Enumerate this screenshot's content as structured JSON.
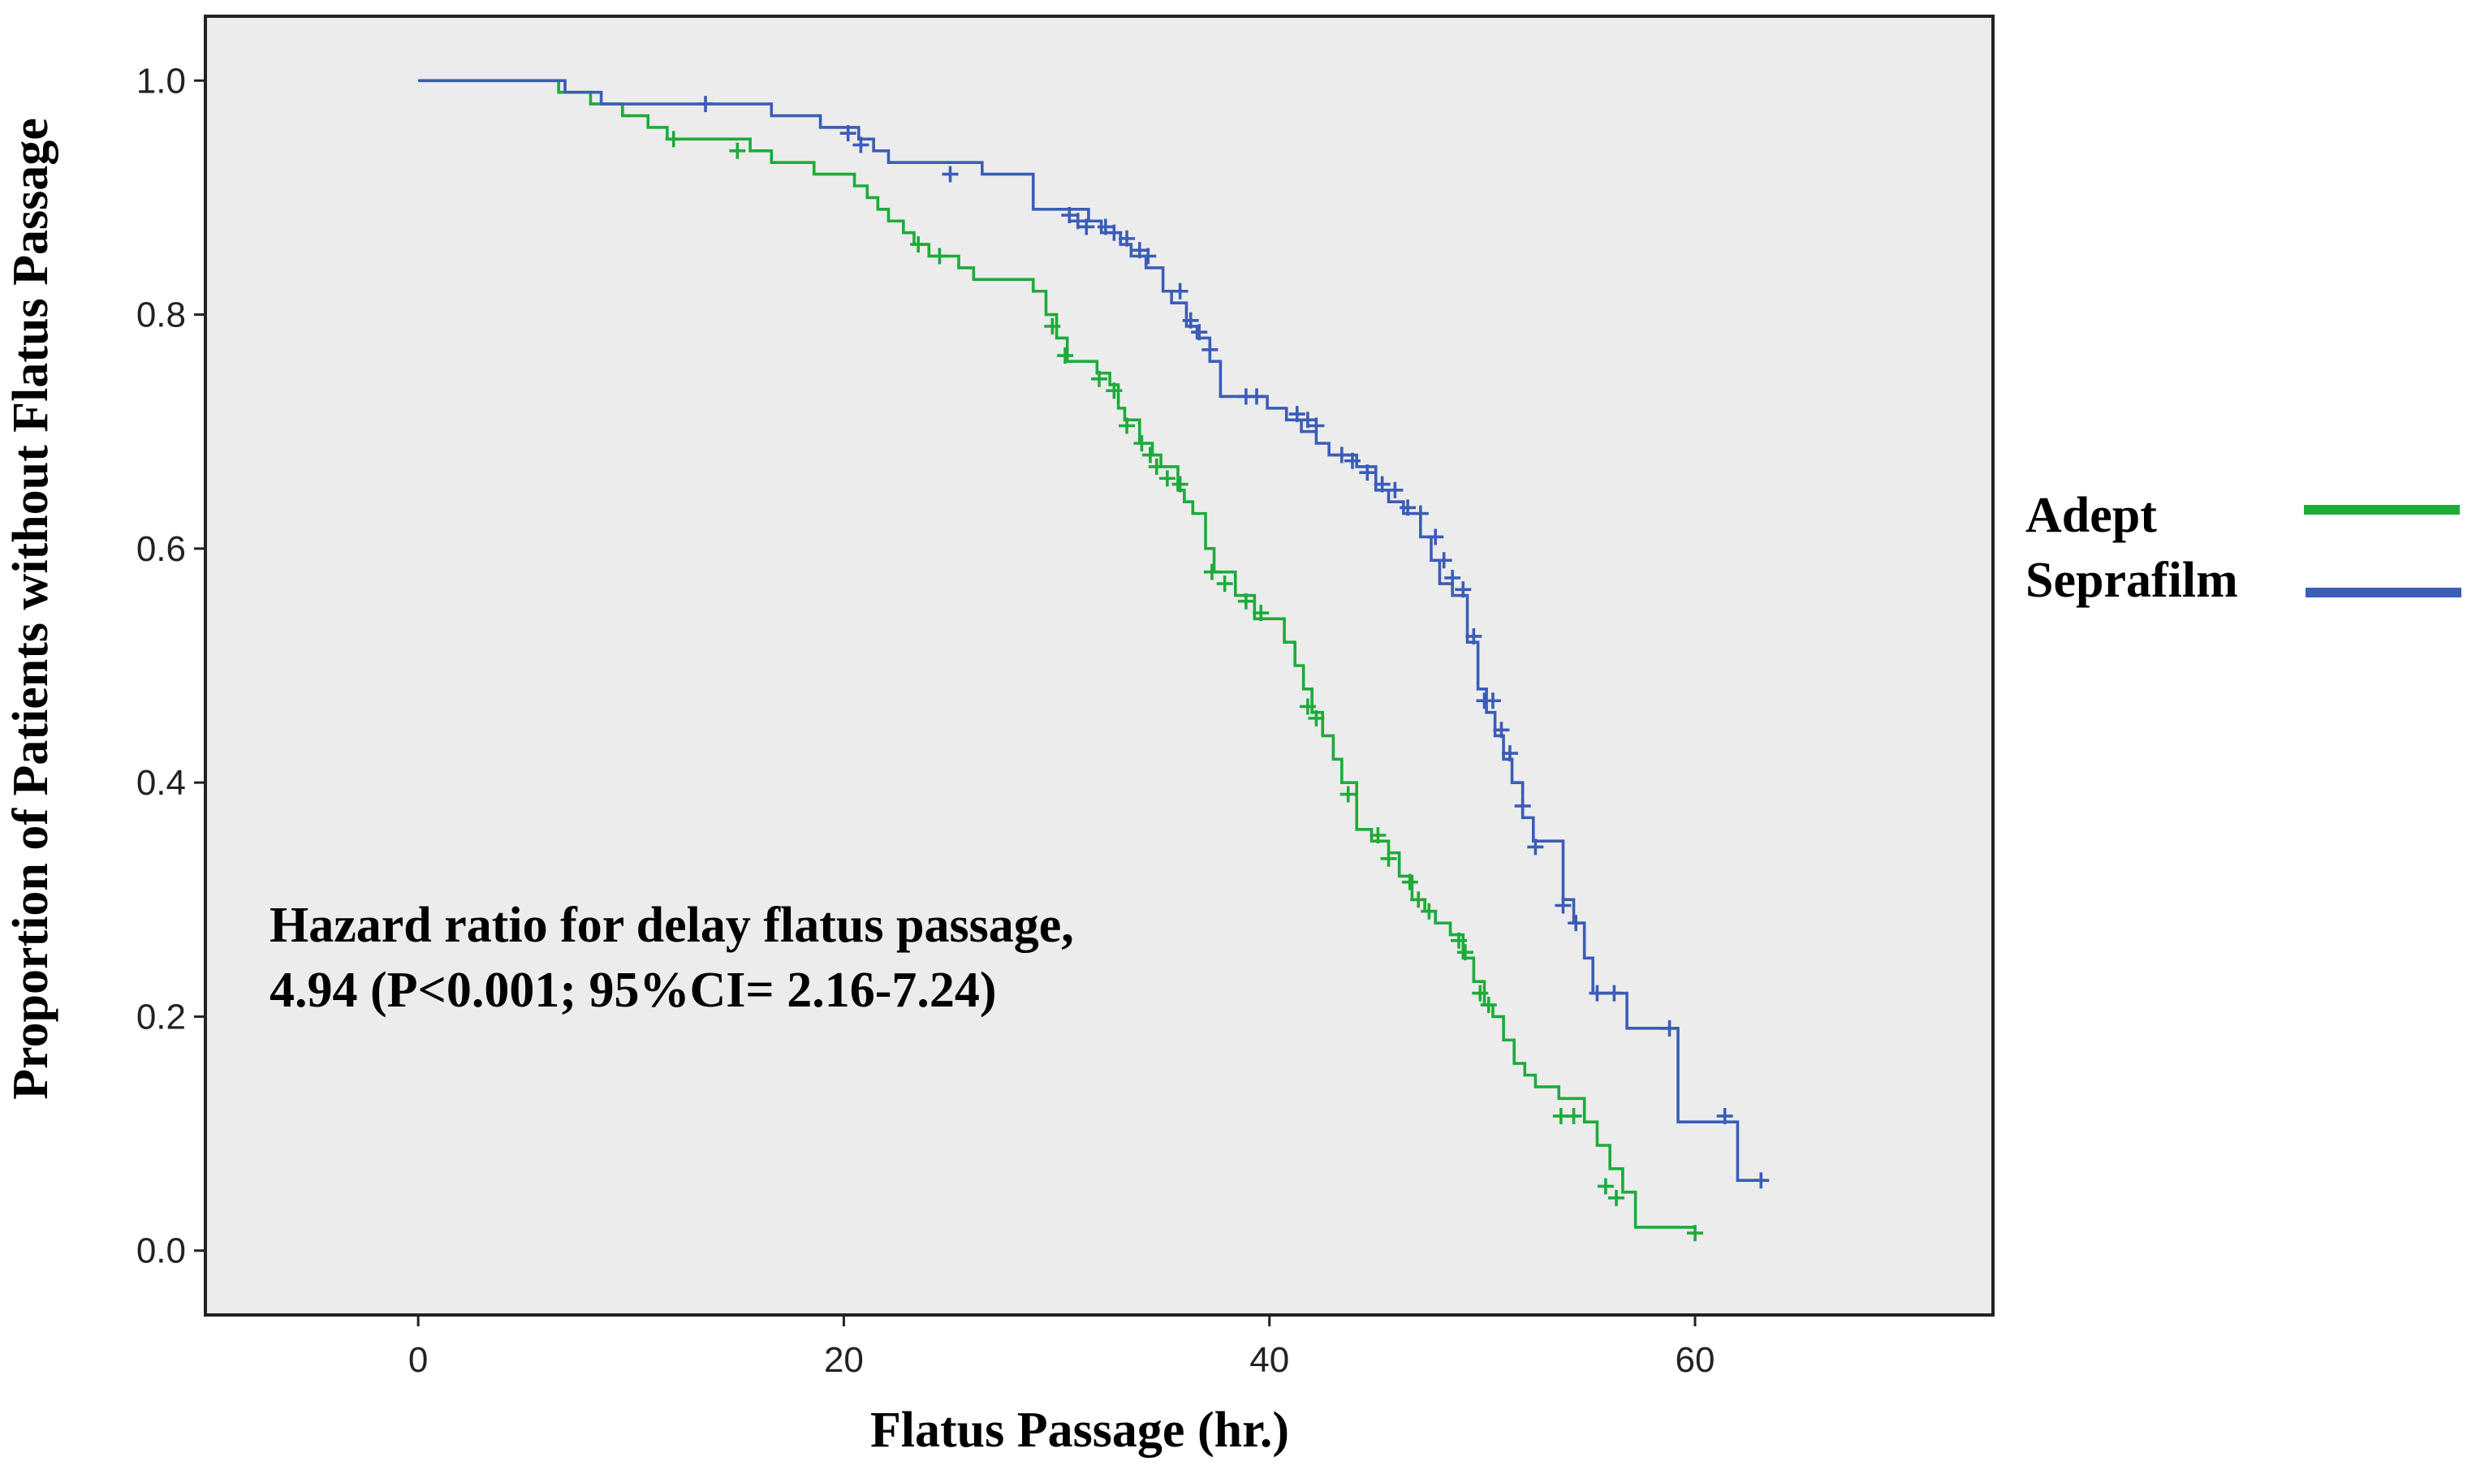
{
  "chart_data": {
    "type": "line",
    "title": "",
    "xlabel": "Flatus Passage (hr.)",
    "ylabel": "Proportion of  Patients without Flatus Passage",
    "xlim": [
      -10,
      74
    ],
    "ylim": [
      -0.055,
      1.055
    ],
    "xticks": [
      0,
      20,
      40,
      60
    ],
    "yticks": [
      0.0,
      0.2,
      0.4,
      0.6,
      0.8,
      1.0
    ],
    "x_tick_labels": [
      "0",
      "20",
      "40",
      "60"
    ],
    "y_tick_labels": [
      "0.0",
      "0.2",
      "0.4",
      "0.6",
      "0.8",
      "1.0"
    ],
    "grid": false,
    "legend_position": "right",
    "annotation": [
      "Hazard ratio for delay flatus passage,",
      "4.94 (P<0.001; 95%CI= 2.16-7.24)"
    ],
    "series": [
      {
        "name": "Adept",
        "color": "#1dab3a",
        "steps": [
          [
            0,
            1.0
          ],
          [
            6.6,
            0.99
          ],
          [
            8.1,
            0.98
          ],
          [
            9.6,
            0.97
          ],
          [
            10.8,
            0.96
          ],
          [
            11.7,
            0.95
          ],
          [
            15.6,
            0.94
          ],
          [
            16.6,
            0.93
          ],
          [
            18.6,
            0.92
          ],
          [
            20.5,
            0.91
          ],
          [
            21.1,
            0.9
          ],
          [
            21.6,
            0.89
          ],
          [
            22.1,
            0.88
          ],
          [
            22.8,
            0.87
          ],
          [
            23.3,
            0.86
          ],
          [
            24.0,
            0.85
          ],
          [
            25.4,
            0.84
          ],
          [
            26.1,
            0.83
          ],
          [
            28.9,
            0.82
          ],
          [
            29.5,
            0.8
          ],
          [
            30.0,
            0.78
          ],
          [
            30.5,
            0.76
          ],
          [
            31.9,
            0.75
          ],
          [
            32.5,
            0.74
          ],
          [
            32.9,
            0.72
          ],
          [
            33.2,
            0.71
          ],
          [
            33.9,
            0.69
          ],
          [
            34.5,
            0.68
          ],
          [
            34.9,
            0.67
          ],
          [
            35.7,
            0.65
          ],
          [
            36.0,
            0.64
          ],
          [
            36.4,
            0.63
          ],
          [
            37.0,
            0.6
          ],
          [
            37.4,
            0.58
          ],
          [
            38.4,
            0.56
          ],
          [
            39.3,
            0.54
          ],
          [
            40.7,
            0.52
          ],
          [
            41.2,
            0.5
          ],
          [
            41.6,
            0.48
          ],
          [
            42.0,
            0.46
          ],
          [
            42.5,
            0.44
          ],
          [
            43.0,
            0.42
          ],
          [
            43.4,
            0.4
          ],
          [
            44.1,
            0.36
          ],
          [
            44.8,
            0.35
          ],
          [
            45.6,
            0.34
          ],
          [
            46.1,
            0.32
          ],
          [
            46.7,
            0.3
          ],
          [
            47.3,
            0.29
          ],
          [
            47.8,
            0.28
          ],
          [
            48.5,
            0.27
          ],
          [
            49.1,
            0.25
          ],
          [
            49.6,
            0.23
          ],
          [
            50.1,
            0.21
          ],
          [
            50.5,
            0.2
          ],
          [
            51.0,
            0.18
          ],
          [
            51.5,
            0.16
          ],
          [
            52.0,
            0.15
          ],
          [
            52.5,
            0.14
          ],
          [
            53.6,
            0.13
          ],
          [
            54.8,
            0.11
          ],
          [
            55.4,
            0.09
          ],
          [
            56.0,
            0.07
          ],
          [
            56.6,
            0.05
          ],
          [
            57.2,
            0.02
          ],
          [
            60.0,
            0.02
          ]
        ],
        "censored": [
          [
            12.0,
            0.95
          ],
          [
            15.0,
            0.94
          ],
          [
            23.5,
            0.86
          ],
          [
            24.5,
            0.85
          ],
          [
            29.8,
            0.79
          ],
          [
            30.4,
            0.765
          ],
          [
            32.0,
            0.745
          ],
          [
            32.7,
            0.735
          ],
          [
            33.3,
            0.705
          ],
          [
            34.0,
            0.69
          ],
          [
            34.4,
            0.68
          ],
          [
            34.7,
            0.67
          ],
          [
            35.2,
            0.66
          ],
          [
            35.8,
            0.655
          ],
          [
            37.3,
            0.58
          ],
          [
            37.9,
            0.57
          ],
          [
            38.9,
            0.555
          ],
          [
            39.6,
            0.545
          ],
          [
            41.8,
            0.465
          ],
          [
            42.2,
            0.455
          ],
          [
            43.7,
            0.39
          ],
          [
            45.1,
            0.355
          ],
          [
            45.6,
            0.335
          ],
          [
            46.6,
            0.315
          ],
          [
            47.0,
            0.3
          ],
          [
            47.5,
            0.29
          ],
          [
            48.9,
            0.265
          ],
          [
            49.2,
            0.255
          ],
          [
            49.9,
            0.22
          ],
          [
            50.3,
            0.21
          ],
          [
            53.7,
            0.115
          ],
          [
            54.3,
            0.115
          ],
          [
            55.8,
            0.055
          ],
          [
            56.3,
            0.045
          ],
          [
            60.0,
            0.015
          ]
        ]
      },
      {
        "name": "Seprafilm",
        "color": "#3b5db8",
        "steps": [
          [
            0,
            1.0
          ],
          [
            6.9,
            0.99
          ],
          [
            8.6,
            0.98
          ],
          [
            16.6,
            0.97
          ],
          [
            18.9,
            0.96
          ],
          [
            20.7,
            0.95
          ],
          [
            21.4,
            0.94
          ],
          [
            22.1,
            0.93
          ],
          [
            26.5,
            0.92
          ],
          [
            28.9,
            0.89
          ],
          [
            31.5,
            0.88
          ],
          [
            32.1,
            0.87
          ],
          [
            33.0,
            0.86
          ],
          [
            33.5,
            0.85
          ],
          [
            34.2,
            0.84
          ],
          [
            35.0,
            0.82
          ],
          [
            35.4,
            0.81
          ],
          [
            36.1,
            0.79
          ],
          [
            36.6,
            0.78
          ],
          [
            37.2,
            0.76
          ],
          [
            37.7,
            0.73
          ],
          [
            39.9,
            0.72
          ],
          [
            40.8,
            0.71
          ],
          [
            41.5,
            0.7
          ],
          [
            42.2,
            0.69
          ],
          [
            42.8,
            0.68
          ],
          [
            44.1,
            0.67
          ],
          [
            45.0,
            0.65
          ],
          [
            45.6,
            0.64
          ],
          [
            46.3,
            0.63
          ],
          [
            47.1,
            0.61
          ],
          [
            47.6,
            0.59
          ],
          [
            48.0,
            0.57
          ],
          [
            48.6,
            0.56
          ],
          [
            49.3,
            0.52
          ],
          [
            49.8,
            0.48
          ],
          [
            50.2,
            0.46
          ],
          [
            50.6,
            0.44
          ],
          [
            51.0,
            0.42
          ],
          [
            51.4,
            0.4
          ],
          [
            51.9,
            0.37
          ],
          [
            52.4,
            0.35
          ],
          [
            53.8,
            0.3
          ],
          [
            54.3,
            0.28
          ],
          [
            54.8,
            0.25
          ],
          [
            55.2,
            0.22
          ],
          [
            56.8,
            0.19
          ],
          [
            59.2,
            0.11
          ],
          [
            62.0,
            0.06
          ],
          [
            63.0,
            0.06
          ]
        ],
        "censored": [
          [
            13.5,
            0.98
          ],
          [
            20.2,
            0.955
          ],
          [
            20.8,
            0.945
          ],
          [
            25.0,
            0.92
          ],
          [
            30.6,
            0.885
          ],
          [
            31.0,
            0.88
          ],
          [
            31.4,
            0.875
          ],
          [
            32.3,
            0.875
          ],
          [
            32.7,
            0.87
          ],
          [
            33.3,
            0.865
          ],
          [
            33.9,
            0.855
          ],
          [
            34.3,
            0.85
          ],
          [
            35.8,
            0.82
          ],
          [
            36.3,
            0.795
          ],
          [
            36.7,
            0.785
          ],
          [
            37.2,
            0.77
          ],
          [
            38.9,
            0.73
          ],
          [
            39.4,
            0.73
          ],
          [
            41.3,
            0.715
          ],
          [
            41.8,
            0.71
          ],
          [
            42.2,
            0.705
          ],
          [
            43.4,
            0.68
          ],
          [
            43.9,
            0.675
          ],
          [
            44.6,
            0.665
          ],
          [
            45.3,
            0.655
          ],
          [
            45.9,
            0.65
          ],
          [
            46.5,
            0.635
          ],
          [
            47.1,
            0.63
          ],
          [
            47.8,
            0.61
          ],
          [
            48.2,
            0.59
          ],
          [
            48.6,
            0.575
          ],
          [
            49.1,
            0.565
          ],
          [
            49.6,
            0.525
          ],
          [
            50.1,
            0.47
          ],
          [
            50.5,
            0.47
          ],
          [
            50.9,
            0.445
          ],
          [
            51.3,
            0.425
          ],
          [
            51.9,
            0.38
          ],
          [
            52.5,
            0.345
          ],
          [
            53.8,
            0.295
          ],
          [
            54.4,
            0.28
          ],
          [
            55.4,
            0.22
          ],
          [
            56.2,
            0.22
          ],
          [
            58.8,
            0.19
          ],
          [
            61.4,
            0.115
          ],
          [
            63.1,
            0.06
          ]
        ]
      }
    ]
  }
}
